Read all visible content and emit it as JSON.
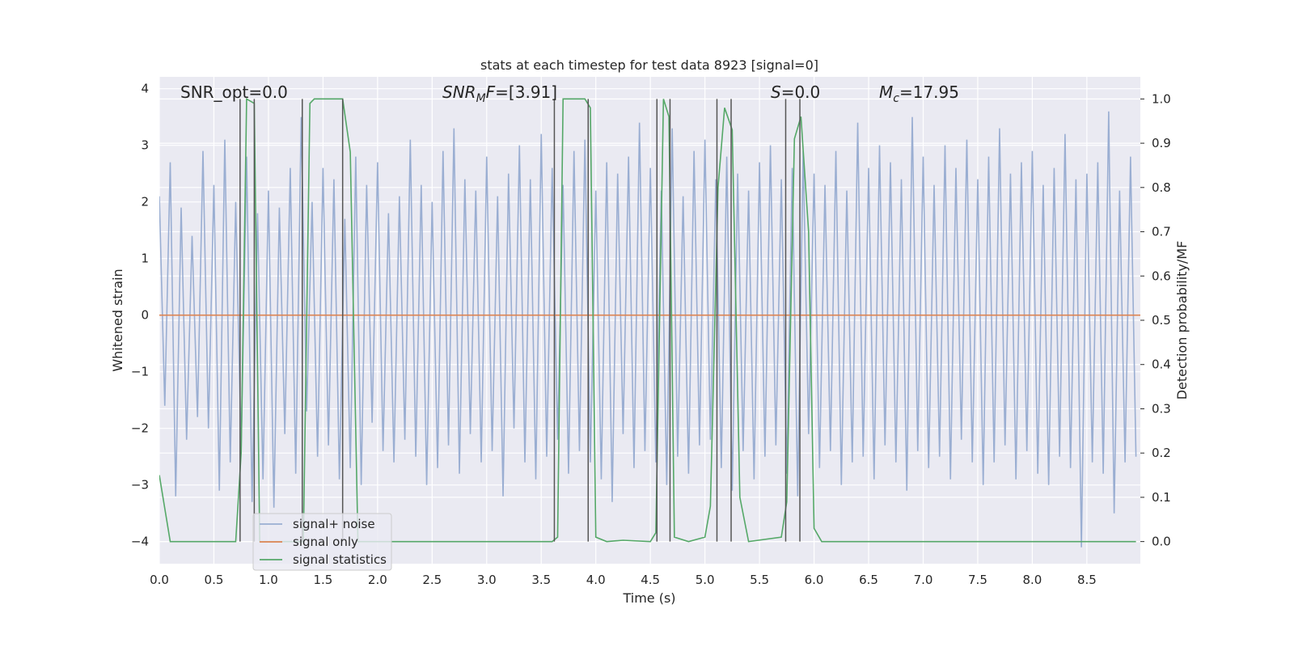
{
  "chart_data": {
    "type": "line",
    "title": "stats at each timestep for test data 8923 [signal=0]",
    "xlabel": "Time (s)",
    "ylabel": "Whitened strain",
    "y2label": "Detection probability/MF",
    "xlim": [
      0,
      8.99
    ],
    "ylim": [
      -4.39,
      4.21
    ],
    "y2lim": [
      -0.05,
      1.05
    ],
    "xticks": [
      {
        "value": 0,
        "label": "0.0"
      },
      0.5,
      {
        "value": 1,
        "label": "1.0"
      },
      1.5,
      {
        "value": 2,
        "label": "2.0"
      },
      2.5,
      {
        "value": 3,
        "label": "3.0"
      },
      3.5,
      {
        "value": 4,
        "label": "4.0"
      },
      4.5,
      {
        "value": 5,
        "label": "5.0"
      },
      5.5,
      {
        "value": 6,
        "label": "6.0"
      },
      6.5,
      {
        "value": 7,
        "label": "7.0"
      },
      7.5,
      {
        "value": 8,
        "label": "8.0"
      },
      8.5
    ],
    "yticks": [
      {
        "value": -4,
        "label": "−4"
      },
      {
        "value": -3,
        "label": "−3"
      },
      {
        "value": -2,
        "label": "−2"
      },
      {
        "value": -1,
        "label": "−1"
      },
      0,
      1,
      2,
      3,
      4
    ],
    "y2ticks": [
      {
        "value": 0,
        "label": "0.0"
      },
      0.1,
      0.2,
      0.3,
      0.4,
      0.5,
      0.6,
      0.7,
      0.8,
      0.9,
      {
        "value": 1,
        "label": "1.0"
      }
    ],
    "grid": true,
    "legend": "lower left",
    "annotations": [
      {
        "parts": [
          {
            "text": "SNR_opt=0.0"
          }
        ]
      },
      {
        "parts": [
          {
            "text": "SNR",
            "italic": true
          },
          {
            "text": "M",
            "italic": true,
            "sub": true
          },
          {
            "text": "F",
            "italic": true
          },
          {
            "text": "=[3.91]"
          }
        ]
      },
      {
        "parts": [
          {
            "text": "S",
            "italic": true
          },
          {
            "text": "=0.0"
          }
        ]
      },
      {
        "parts": [
          {
            "text": "M",
            "italic": true
          },
          {
            "text": "c",
            "italic": true,
            "sub": true
          },
          {
            "text": "=17.95"
          }
        ]
      }
    ],
    "vlines": {
      "x": [
        0.74,
        0.87,
        1.31,
        1.68,
        3.62,
        3.93,
        4.56,
        4.68,
        5.11,
        5.24,
        5.74,
        5.87
      ],
      "range": [
        0,
        1
      ],
      "color": "#555555",
      "axis": "y2"
    },
    "series": [
      {
        "name": "signal+ noise",
        "color": "#9aaed2",
        "axis": "y",
        "x": [
          0,
          0.05,
          0.1,
          0.15,
          0.2,
          0.25,
          0.3,
          0.35,
          0.4,
          0.45,
          0.5,
          0.55,
          0.6,
          0.65,
          0.7,
          0.75,
          0.8,
          0.85,
          0.9,
          0.95,
          1,
          1.05,
          1.1,
          1.15,
          1.2,
          1.25,
          1.3,
          1.35,
          1.4,
          1.45,
          1.5,
          1.55,
          1.6,
          1.65,
          1.7,
          1.75,
          1.8,
          1.85,
          1.9,
          1.95,
          2,
          2.05,
          2.1,
          2.15,
          2.2,
          2.25,
          2.3,
          2.35,
          2.4,
          2.45,
          2.5,
          2.55,
          2.6,
          2.65,
          2.7,
          2.75,
          2.8,
          2.85,
          2.9,
          2.95,
          3,
          3.05,
          3.1,
          3.15,
          3.2,
          3.25,
          3.3,
          3.35,
          3.4,
          3.45,
          3.5,
          3.55,
          3.6,
          3.65,
          3.7,
          3.75,
          3.8,
          3.85,
          3.9,
          3.95,
          4,
          4.05,
          4.1,
          4.15,
          4.2,
          4.25,
          4.3,
          4.35,
          4.4,
          4.45,
          4.5,
          4.55,
          4.6,
          4.65,
          4.7,
          4.75,
          4.8,
          4.85,
          4.9,
          4.95,
          5,
          5.05,
          5.1,
          5.15,
          5.2,
          5.25,
          5.3,
          5.35,
          5.4,
          5.45,
          5.5,
          5.55,
          5.6,
          5.65,
          5.7,
          5.75,
          5.8,
          5.85,
          5.9,
          5.95,
          6,
          6.05,
          6.1,
          6.15,
          6.2,
          6.25,
          6.3,
          6.35,
          6.4,
          6.45,
          6.5,
          6.55,
          6.6,
          6.65,
          6.7,
          6.75,
          6.8,
          6.85,
          6.9,
          6.95,
          7,
          7.05,
          7.1,
          7.15,
          7.2,
          7.25,
          7.3,
          7.35,
          7.4,
          7.45,
          7.5,
          7.55,
          7.6,
          7.65,
          7.7,
          7.75,
          7.8,
          7.85,
          7.9,
          7.95,
          8,
          8.05,
          8.1,
          8.15,
          8.2,
          8.25,
          8.3,
          8.35,
          8.4,
          8.45,
          8.5,
          8.55,
          8.6,
          8.65,
          8.7,
          8.75,
          8.8,
          8.85,
          8.9,
          8.95
        ],
        "values": [
          2.1,
          -1.6,
          2.7,
          -3.2,
          1.9,
          -2.2,
          1.4,
          -1.8,
          2.9,
          -2.0,
          2.3,
          -3.1,
          3.1,
          -2.6,
          2.0,
          -2.4,
          2.8,
          -3.3,
          1.8,
          -2.9,
          2.2,
          -3.4,
          1.9,
          -2.1,
          2.6,
          -2.8,
          3.5,
          -1.7,
          2.0,
          -2.5,
          2.6,
          -2.3,
          2.4,
          -2.9,
          1.7,
          -2.7,
          2.8,
          -3.0,
          2.3,
          -1.9,
          2.7,
          -2.4,
          1.8,
          -2.6,
          2.1,
          -2.2,
          3.1,
          -2.5,
          2.3,
          -3.0,
          2.0,
          -2.7,
          2.9,
          -2.3,
          3.3,
          -2.8,
          2.4,
          -2.1,
          2.2,
          -2.6,
          2.8,
          -2.4,
          2.1,
          -3.2,
          2.5,
          -2.0,
          3.0,
          -2.6,
          2.4,
          -2.9,
          3.2,
          -2.5,
          2.6,
          -2.2,
          2.3,
          -2.8,
          2.9,
          -2.4,
          3.1,
          -2.6,
          2.2,
          -2.9,
          2.7,
          -3.3,
          2.5,
          -2.1,
          2.8,
          -2.7,
          3.4,
          -2.4,
          2.6,
          -2.6,
          2.2,
          -3.0,
          3.3,
          -2.5,
          2.1,
          -2.8,
          2.9,
          -2.3,
          3.1,
          -2.2,
          2.4,
          -2.7,
          2.8,
          -3.1,
          2.5,
          -2.4,
          2.2,
          -2.9,
          2.7,
          -2.5,
          3.0,
          -2.3,
          2.4,
          -2.8,
          2.6,
          -3.2,
          2.9,
          -2.1,
          2.5,
          -2.7,
          2.3,
          -2.4,
          2.9,
          -3.0,
          2.2,
          -2.6,
          3.4,
          -2.5,
          2.6,
          -2.9,
          3.0,
          -2.3,
          2.7,
          -2.6,
          2.4,
          -3.1,
          3.5,
          -2.4,
          2.8,
          -2.7,
          2.3,
          -2.5,
          3.0,
          -2.9,
          2.6,
          -2.2,
          3.1,
          -2.6,
          2.4,
          -3.0,
          2.8,
          -2.6,
          3.3,
          -2.3,
          2.5,
          -2.9,
          2.7,
          -2.4,
          2.9,
          -2.8,
          2.3,
          -3.0,
          2.6,
          -2.5,
          3.2,
          -2.7,
          2.4,
          -4.1,
          2.5,
          -2.6,
          2.7,
          -2.8,
          3.6,
          -3.5,
          2.2,
          -2.6,
          2.8,
          -2.5
        ]
      },
      {
        "name": "signal only",
        "color": "#dd8452",
        "axis": "y",
        "x": [
          0,
          8.99
        ],
        "values": [
          0,
          0
        ]
      },
      {
        "name": "signal statistics",
        "color": "#55a868",
        "axis": "y2",
        "x": [
          0,
          0.1,
          0.7,
          0.75,
          0.8,
          0.87,
          0.92,
          1.32,
          1.38,
          1.42,
          1.68,
          1.75,
          1.82,
          3.6,
          3.65,
          3.7,
          3.9,
          3.95,
          4.0,
          4.1,
          4.25,
          4.5,
          4.55,
          4.62,
          4.67,
          4.72,
          4.85,
          5.0,
          5.05,
          5.12,
          5.18,
          5.25,
          5.32,
          5.4,
          5.7,
          5.75,
          5.82,
          5.88,
          5.95,
          6.0,
          6.07,
          8.95
        ],
        "values": [
          0.15,
          0,
          0,
          0.2,
          1.0,
          0.99,
          0,
          0,
          0.99,
          1.0,
          1.0,
          0.88,
          0,
          0,
          0.01,
          1.0,
          1.0,
          0.98,
          0.01,
          0,
          0.003,
          0,
          0.02,
          1.0,
          0.96,
          0.01,
          0,
          0.01,
          0.08,
          0.8,
          0.98,
          0.93,
          0.1,
          0,
          0.01,
          0.09,
          0.91,
          0.96,
          0.7,
          0.03,
          0,
          0
        ]
      }
    ]
  }
}
